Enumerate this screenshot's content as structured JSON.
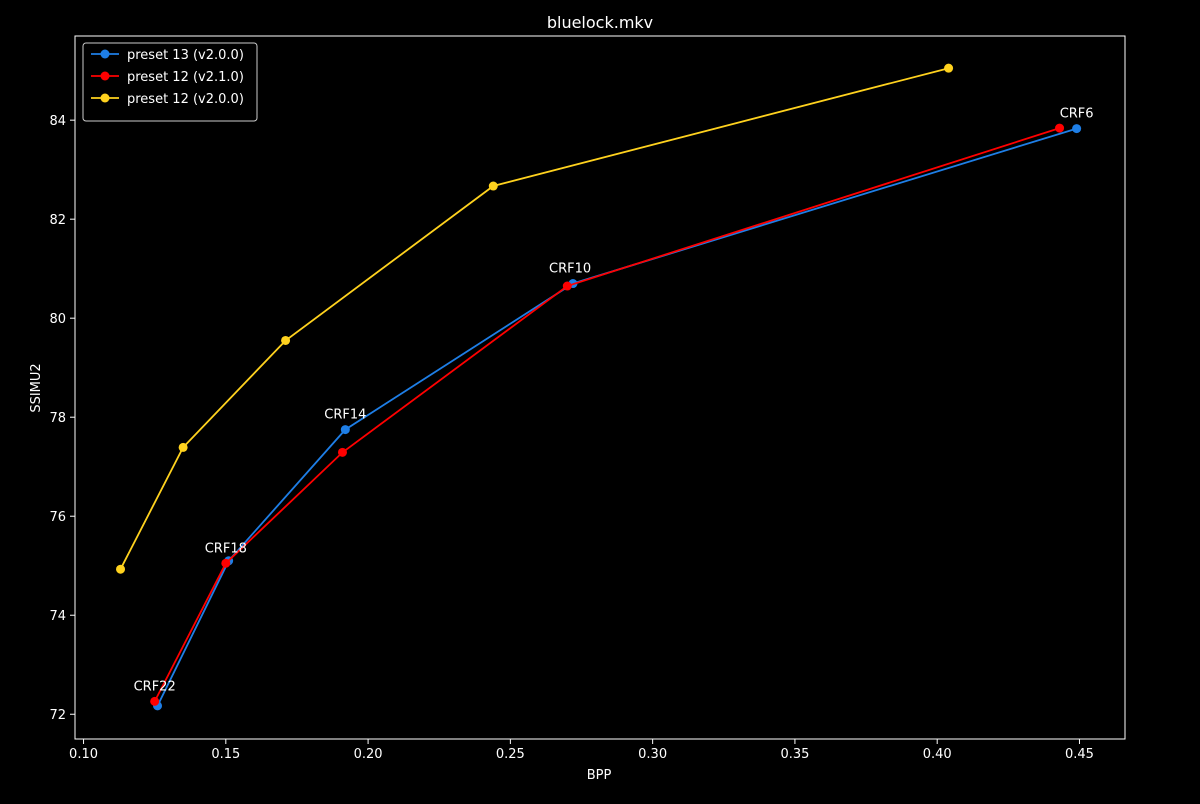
{
  "chart_data": {
    "type": "line",
    "title": "bluelock.mkv",
    "xlabel": "BPP",
    "ylabel": "SSIMU2",
    "xlim": [
      0.097,
      0.466
    ],
    "ylim": [
      71.5,
      85.7
    ],
    "xticks": [
      0.1,
      0.15,
      0.2,
      0.25,
      0.3,
      0.35,
      0.4,
      0.45
    ],
    "xtick_labels": [
      "0.10",
      "0.15",
      "0.20",
      "0.25",
      "0.30",
      "0.35",
      "0.40",
      "0.45"
    ],
    "yticks": [
      72,
      74,
      76,
      78,
      80,
      82,
      84
    ],
    "ytick_labels": [
      "72",
      "74",
      "76",
      "78",
      "80",
      "82",
      "84"
    ],
    "grid": false,
    "legend_position": "top-left",
    "background_color": "#000000",
    "foreground_color": "#ffffff",
    "series": [
      {
        "name": "preset 13 (v2.0.0)",
        "color": "#1e7ee6",
        "x": [
          0.126,
          0.151,
          0.192,
          0.272,
          0.449
        ],
        "y": [
          72.17,
          75.1,
          77.75,
          80.7,
          83.83
        ]
      },
      {
        "name": "preset 12 (v2.1.0)",
        "color": "#ff0000",
        "x": [
          0.125,
          0.15,
          0.191,
          0.27,
          0.443
        ],
        "y": [
          72.26,
          75.05,
          77.29,
          80.65,
          83.84
        ]
      },
      {
        "name": "preset 12 (v2.0.0)",
        "color": "#ffd21e",
        "x": [
          0.113,
          0.135,
          0.171,
          0.244,
          0.404
        ],
        "y": [
          74.93,
          77.39,
          79.55,
          82.67,
          85.05
        ]
      }
    ],
    "annotations": [
      {
        "text": "CRF22",
        "x": 0.125,
        "y": 72.26
      },
      {
        "text": "CRF18",
        "x": 0.15,
        "y": 75.05
      },
      {
        "text": "CRF14",
        "x": 0.192,
        "y": 77.75
      },
      {
        "text": "CRF10",
        "x": 0.271,
        "y": 80.7
      },
      {
        "text": "CRF6",
        "x": 0.449,
        "y": 83.83
      }
    ]
  }
}
